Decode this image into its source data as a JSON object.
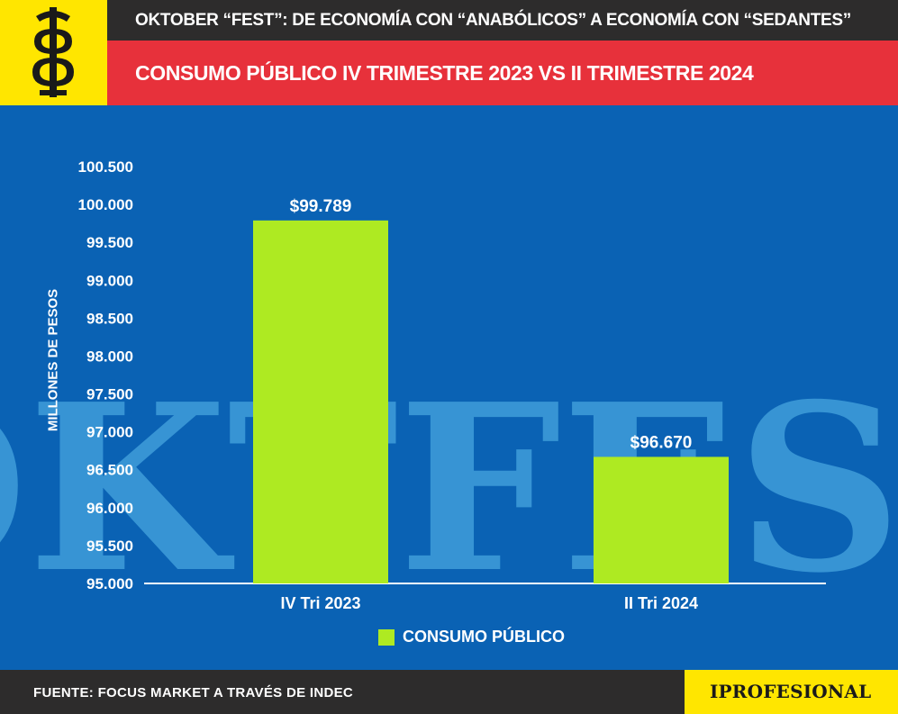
{
  "header": {
    "kicker": "OKTOBER “FEST”: DE ECONOMÍA CON “ANABÓLICOS” A ECONOMÍA CON “SEDANTES”",
    "title": "CONSUMO PÚBLICO IV TRIMESTRE 2023 VS II TRIMESTRE 2024"
  },
  "footer": {
    "source": "FUENTE: FOCUS MARKET A TRAVÉS DE INDEC",
    "brand": "IPROFESIONAL"
  },
  "colors": {
    "background": "#0a62b4",
    "bar": "#aeea22",
    "header_red": "#e7313b",
    "header_dark": "#2d2c2c",
    "logo_yellow": "#ffe600"
  },
  "watermark": {
    "text": "OKTFEST",
    "color": "#3c9ad8"
  },
  "chart_data": {
    "type": "bar",
    "categories": [
      "IV Tri 2023",
      "II Tri 2024"
    ],
    "series": [
      {
        "name": "CONSUMO PÚBLICO",
        "values": [
          99789,
          96670
        ]
      }
    ],
    "data_labels": [
      "$99.789",
      "$96.670"
    ],
    "ylabel": "MILLONES DE PESOS",
    "ylim": [
      95000,
      100500
    ],
    "yticks": [
      95000,
      95500,
      96000,
      96500,
      97000,
      97500,
      98000,
      98500,
      99000,
      99500,
      100000,
      100500
    ],
    "ytick_labels": [
      "95.000",
      "95.500",
      "96.000",
      "96.500",
      "97.000",
      "97.500",
      "98.000",
      "98.500",
      "99.000",
      "99.500",
      "100.000",
      "100.500"
    ],
    "grid": false,
    "legend_position": "bottom-center"
  }
}
